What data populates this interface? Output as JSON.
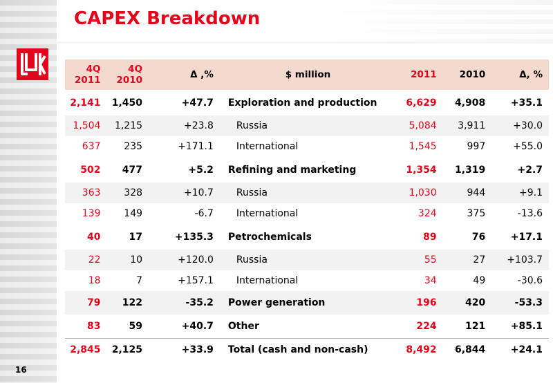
{
  "slide": {
    "title": "CAPEX Breakdown",
    "page_number": "16"
  },
  "colors": {
    "accent_red": "#e3051b",
    "header_bg": "#f3d9ce",
    "alt_row_bg": "#f2f2f2"
  },
  "logo": {
    "icon": "lukoil-logo-icon"
  },
  "table": {
    "headers": {
      "q4_2011": [
        "4Q",
        "2011"
      ],
      "q4_2010": [
        "4Q",
        "2010"
      ],
      "delta_q": "Δ ,%",
      "unit": "$ million",
      "y2011": "2011",
      "y2010": "2010",
      "delta_y": "Δ, %"
    },
    "rows": [
      {
        "type": "main",
        "q4_2011": "2,141",
        "q4_2010": "1,450",
        "delta_q": "+47.7",
        "label": "Exploration and production",
        "y2011": "6,629",
        "y2010": "4,908",
        "delta_y": "+35.1"
      },
      {
        "type": "sub",
        "q4_2011": "1,504",
        "q4_2010": "1,215",
        "delta_q": "+23.8",
        "label": "Russia",
        "y2011": "5,084",
        "y2010": "3,911",
        "delta_y": "+30.0"
      },
      {
        "type": "sub",
        "q4_2011": "637",
        "q4_2010": "235",
        "delta_q": "+171.1",
        "label": "International",
        "y2011": "1,545",
        "y2010": "997",
        "delta_y": "+55.0"
      },
      {
        "type": "main",
        "q4_2011": "502",
        "q4_2010": "477",
        "delta_q": "+5.2",
        "label": "Refining and marketing",
        "y2011": "1,354",
        "y2010": "1,319",
        "delta_y": "+2.7"
      },
      {
        "type": "sub",
        "q4_2011": "363",
        "q4_2010": "328",
        "delta_q": "+10.7",
        "label": "Russia",
        "y2011": "1,030",
        "y2010": "944",
        "delta_y": "+9.1"
      },
      {
        "type": "sub",
        "q4_2011": "139",
        "q4_2010": "149",
        "delta_q": "-6.7",
        "label": "International",
        "y2011": "324",
        "y2010": "375",
        "delta_y": "-13.6"
      },
      {
        "type": "main",
        "q4_2011": "40",
        "q4_2010": "17",
        "delta_q": "+135.3",
        "label": "Petrochemicals",
        "y2011": "89",
        "y2010": "76",
        "delta_y": "+17.1"
      },
      {
        "type": "sub",
        "q4_2011": "22",
        "q4_2010": "10",
        "delta_q": "+120.0",
        "label": "Russia",
        "y2011": "55",
        "y2010": "27",
        "delta_y": "+103.7"
      },
      {
        "type": "sub",
        "q4_2011": "18",
        "q4_2010": "7",
        "delta_q": "+157.1",
        "label": "International",
        "y2011": "34",
        "y2010": "49",
        "delta_y": "-30.6"
      },
      {
        "type": "main",
        "q4_2011": "79",
        "q4_2010": "122",
        "delta_q": "-35.2",
        "label": "Power generation",
        "y2011": "196",
        "y2010": "420",
        "delta_y": "-53.3"
      },
      {
        "type": "main",
        "q4_2011": "83",
        "q4_2010": "59",
        "delta_q": "+40.7",
        "label": "Other",
        "y2011": "224",
        "y2010": "121",
        "delta_y": "+85.1"
      },
      {
        "type": "total",
        "q4_2011": "2,845",
        "q4_2010": "2,125",
        "delta_q": "+33.9",
        "label": "Total (cash and non-cash)",
        "y2011": "8,492",
        "y2010": "6,844",
        "delta_y": "+24.1"
      }
    ]
  }
}
